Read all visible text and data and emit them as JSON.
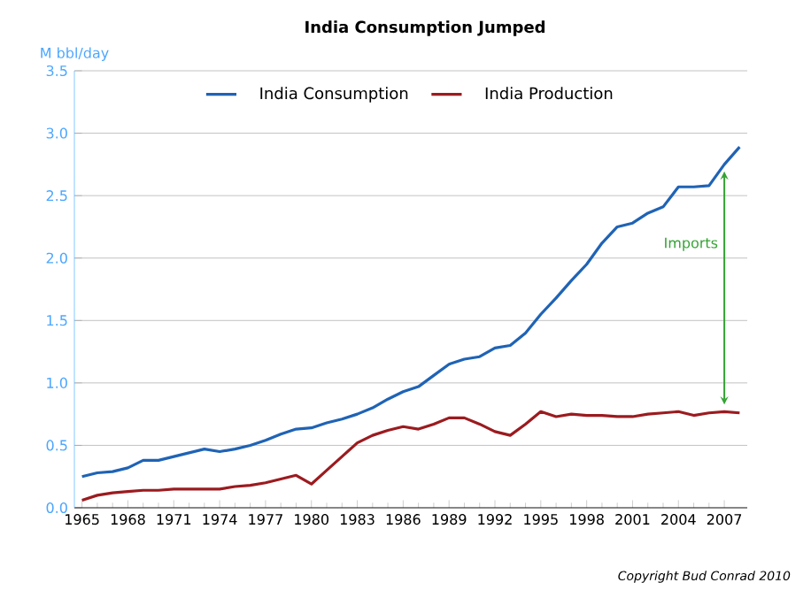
{
  "chart_data": {
    "type": "line",
    "title": "India Consumption Jumped",
    "ylabel": "M bbl/day",
    "x": [
      1965,
      1966,
      1967,
      1968,
      1969,
      1970,
      1971,
      1972,
      1973,
      1974,
      1975,
      1976,
      1977,
      1978,
      1979,
      1980,
      1981,
      1982,
      1983,
      1984,
      1985,
      1986,
      1987,
      1988,
      1989,
      1990,
      1991,
      1992,
      1993,
      1994,
      1995,
      1996,
      1997,
      1998,
      1999,
      2000,
      2001,
      2002,
      2003,
      2004,
      2005,
      2006,
      2007,
      2008
    ],
    "series": [
      {
        "name": "India Consumption",
        "color": "#1f63b5",
        "values": [
          0.25,
          0.28,
          0.29,
          0.32,
          0.38,
          0.38,
          0.41,
          0.44,
          0.47,
          0.45,
          0.47,
          0.5,
          0.54,
          0.59,
          0.63,
          0.64,
          0.68,
          0.71,
          0.75,
          0.8,
          0.87,
          0.93,
          0.97,
          1.06,
          1.15,
          1.19,
          1.21,
          1.28,
          1.3,
          1.4,
          1.55,
          1.68,
          1.82,
          1.95,
          2.12,
          2.25,
          2.28,
          2.36,
          2.41,
          2.57,
          2.57,
          2.58,
          2.75,
          2.89
        ]
      },
      {
        "name": "India Production",
        "color": "#9b1b1f",
        "values": [
          0.06,
          0.1,
          0.12,
          0.13,
          0.14,
          0.14,
          0.15,
          0.15,
          0.15,
          0.15,
          0.17,
          0.18,
          0.2,
          0.23,
          0.26,
          0.19,
          0.3,
          0.41,
          0.52,
          0.58,
          0.62,
          0.65,
          0.63,
          0.67,
          0.72,
          0.72,
          0.67,
          0.61,
          0.58,
          0.67,
          0.77,
          0.73,
          0.75,
          0.74,
          0.74,
          0.73,
          0.73,
          0.75,
          0.76,
          0.77,
          0.74,
          0.76,
          0.77,
          0.76
        ]
      }
    ],
    "xlim": [
      1964.5,
      2008.5
    ],
    "xticks": [
      1965,
      1968,
      1971,
      1974,
      1977,
      1980,
      1983,
      1986,
      1989,
      1992,
      1995,
      1998,
      2001,
      2004,
      2007
    ],
    "ylim": [
      0,
      3.5
    ],
    "yticks": [
      {
        "value": 0,
        "label": "0.0"
      },
      0.5,
      {
        "value": 1,
        "label": "1.0"
      },
      1.5,
      {
        "value": 2,
        "label": "2.0"
      },
      2.5,
      {
        "value": 3,
        "label": "3.0"
      },
      3.5
    ],
    "grid": "y",
    "legend": "top",
    "line_style": "solid",
    "annotations": [
      "Imports",
      "Copyright Bud Conrad 2010"
    ]
  }
}
